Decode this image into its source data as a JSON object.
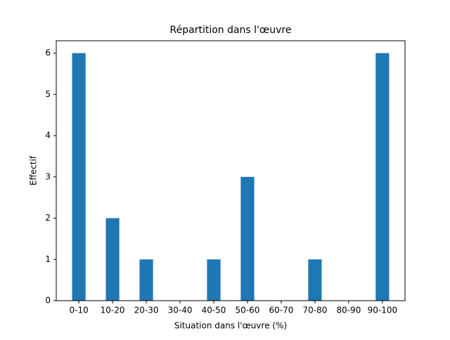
{
  "chart_data": {
    "type": "bar",
    "title": "Répartition dans l'œuvre",
    "x_label": "Situation dans l'œuvre (%)",
    "y_label": "Effectif",
    "categories": [
      "0-10",
      "10-20",
      "20-30",
      "30-40",
      "40-50",
      "50-60",
      "60-70",
      "70-80",
      "80-90",
      "90-100"
    ],
    "values": [
      6,
      2,
      1,
      0,
      1,
      3,
      0,
      1,
      0,
      6
    ],
    "color": "#1f77b4",
    "ylim": [
      0,
      6.3
    ],
    "yticks": [
      0,
      1,
      2,
      3,
      4,
      5,
      6
    ],
    "grid": false
  }
}
